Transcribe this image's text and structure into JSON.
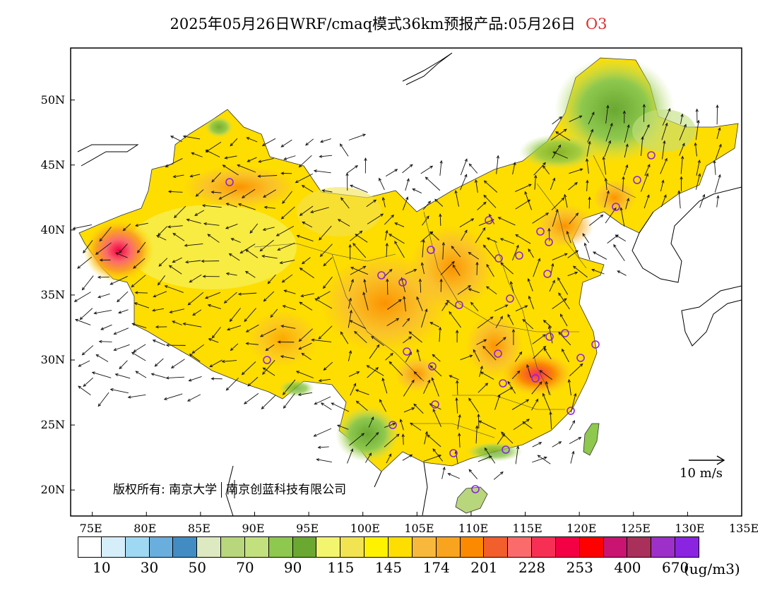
{
  "title": {
    "main": "2025年05月26日WRF/cmaq模式36km预报产品:05月26日",
    "species": "O3",
    "species_color": "#e03030"
  },
  "map": {
    "lon_ticks": [
      "75E",
      "80E",
      "85E",
      "90E",
      "95E",
      "100E",
      "105E",
      "110E",
      "115E",
      "120E",
      "125E",
      "130E",
      "135E"
    ],
    "lat_ticks": [
      "50N",
      "45N",
      "40N",
      "35N",
      "30N",
      "25N",
      "20N"
    ],
    "lon_range": [
      73,
      135
    ],
    "lat_range": [
      18,
      54
    ]
  },
  "copyright": {
    "prefix": "版权所有:",
    "org1": "南京大学",
    "org2": "南京创蓝科技有限公司"
  },
  "wind_reference": {
    "label": "10 m/s"
  },
  "colorbar": {
    "colors": [
      "#ffffff",
      "#d6eefa",
      "#9fd8f3",
      "#6aaede",
      "#438cc3",
      "#dde9c0",
      "#b8d67c",
      "#c3e07e",
      "#8ec84e",
      "#6aa832",
      "#f4f56e",
      "#f2e352",
      "#fff200",
      "#fedd00",
      "#f8b83c",
      "#f9a41f",
      "#fb8a00",
      "#f25e2c",
      "#fb6b6b",
      "#f72f55",
      "#f40044",
      "#ff0000",
      "#c91472",
      "#a8305a",
      "#9d30c9",
      "#8a24e1"
    ],
    "labels": [
      "10",
      "30",
      "50",
      "70",
      "90",
      "115",
      "145",
      "174",
      "201",
      "228",
      "253",
      "400",
      "670"
    ],
    "unit": "(ug/m3)"
  }
}
